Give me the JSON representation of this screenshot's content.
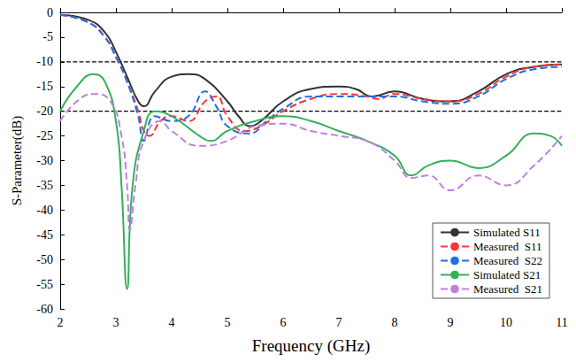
{
  "chart_data": {
    "type": "line",
    "x_label": "Frequency (GHz)",
    "y_label": "S-Parameter(dB)",
    "xlim": [
      2,
      11
    ],
    "xticks": [
      2,
      3,
      4,
      5,
      6,
      7,
      8,
      9,
      10,
      11
    ],
    "ylim": [
      -60,
      0
    ],
    "yticks": [
      -60,
      -55,
      -50,
      -45,
      -40,
      -35,
      -30,
      -25,
      -20,
      -15,
      -10,
      -5,
      0
    ],
    "grid": false,
    "legend": "lower right",
    "hlines": [
      -10,
      -20
    ],
    "series": [
      {
        "name": "Simulated S11",
        "color": "#333333",
        "line_style": "solid",
        "x": [
          2,
          2.5,
          2.8,
          3.0,
          3.2,
          3.4,
          3.5,
          3.7,
          4.0,
          4.3,
          4.6,
          5.0,
          5.2,
          5.4,
          5.6,
          6.0,
          6.5,
          7.0,
          7.3,
          7.6,
          8.0,
          8.5,
          9.0,
          9.5,
          10.0,
          10.5,
          11
        ],
        "values": [
          -0.5,
          -1.5,
          -4,
          -8,
          -13,
          -18,
          -19,
          -16,
          -13,
          -12.5,
          -13.5,
          -18,
          -21,
          -23,
          -22,
          -18,
          -15.5,
          -15,
          -15.5,
          -17,
          -16,
          -17.5,
          -18,
          -16,
          -12.5,
          -11,
          -10.5
        ]
      },
      {
        "name": "Measured  S11",
        "color": "#ff3333",
        "line_style": "dashed",
        "x": [
          2,
          2.5,
          2.8,
          3.0,
          3.2,
          3.4,
          3.5,
          3.6,
          3.8,
          4.0,
          4.3,
          4.6,
          4.8,
          5.0,
          5.3,
          5.6,
          6.0,
          6.5,
          7.0,
          7.5,
          7.7,
          8.0,
          8.5,
          9.0,
          9.5,
          10.0,
          10.5,
          11
        ],
        "values": [
          -0.5,
          -2,
          -5,
          -9,
          -14,
          -20,
          -24,
          -25,
          -22,
          -21,
          -22,
          -18,
          -17,
          -21,
          -24,
          -23,
          -20,
          -17.5,
          -16.5,
          -17,
          -17.5,
          -16.5,
          -17.5,
          -18,
          -16.5,
          -13,
          -11,
          -10.5
        ]
      },
      {
        "name": "Measured  S22",
        "color": "#1f6fe0",
        "line_style": "dashed",
        "x": [
          2,
          2.5,
          2.8,
          3.0,
          3.2,
          3.4,
          3.5,
          3.7,
          4.0,
          4.3,
          4.6,
          4.8,
          5.0,
          5.4,
          5.7,
          6.0,
          6.5,
          7.0,
          7.5,
          8.0,
          8.5,
          9.0,
          9.5,
          10.0,
          10.5,
          11
        ],
        "values": [
          -0.5,
          -2,
          -5,
          -9,
          -14,
          -21,
          -26,
          -21,
          -22,
          -21,
          -16,
          -19,
          -23,
          -24.5,
          -22,
          -19.5,
          -17,
          -17,
          -17,
          -17,
          -18,
          -18.5,
          -17,
          -13.5,
          -11.5,
          -11
        ]
      },
      {
        "name": "Simulated S21",
        "color": "#33b05a",
        "line_style": "solid",
        "x": [
          2,
          2.3,
          2.6,
          2.8,
          3.0,
          3.1,
          3.2,
          3.3,
          3.5,
          3.7,
          4.0,
          4.5,
          4.7,
          5.0,
          5.5,
          6.0,
          6.5,
          7.0,
          7.5,
          8.0,
          8.3,
          8.6,
          9.0,
          9.5,
          10.0,
          10.5,
          10.8,
          11
        ],
        "values": [
          -20,
          -15,
          -12.5,
          -14,
          -22,
          -35,
          -56,
          -35,
          -24,
          -20,
          -21,
          -25,
          -26,
          -24,
          -22,
          -21,
          -22,
          -24,
          -26,
          -29,
          -33,
          -31,
          -30,
          -31.5,
          -29,
          -24.5,
          -25,
          -27
        ]
      },
      {
        "name": "Measured  S21",
        "color": "#c080e0",
        "line_style": "dashed",
        "x": [
          2,
          2.3,
          2.6,
          2.9,
          3.1,
          3.2,
          3.25,
          3.35,
          3.5,
          3.8,
          4.0,
          4.5,
          5.0,
          5.5,
          6.0,
          6.5,
          7.0,
          7.5,
          8.0,
          8.3,
          8.6,
          9.0,
          9.5,
          10.0,
          10.5,
          11
        ],
        "values": [
          -22,
          -18,
          -16.5,
          -18,
          -25,
          -35,
          -44,
          -35,
          -26,
          -22,
          -24,
          -27,
          -26,
          -23,
          -22.5,
          -24,
          -25,
          -26,
          -30,
          -33.5,
          -33,
          -36,
          -33,
          -35,
          -31,
          -25
        ]
      }
    ]
  }
}
